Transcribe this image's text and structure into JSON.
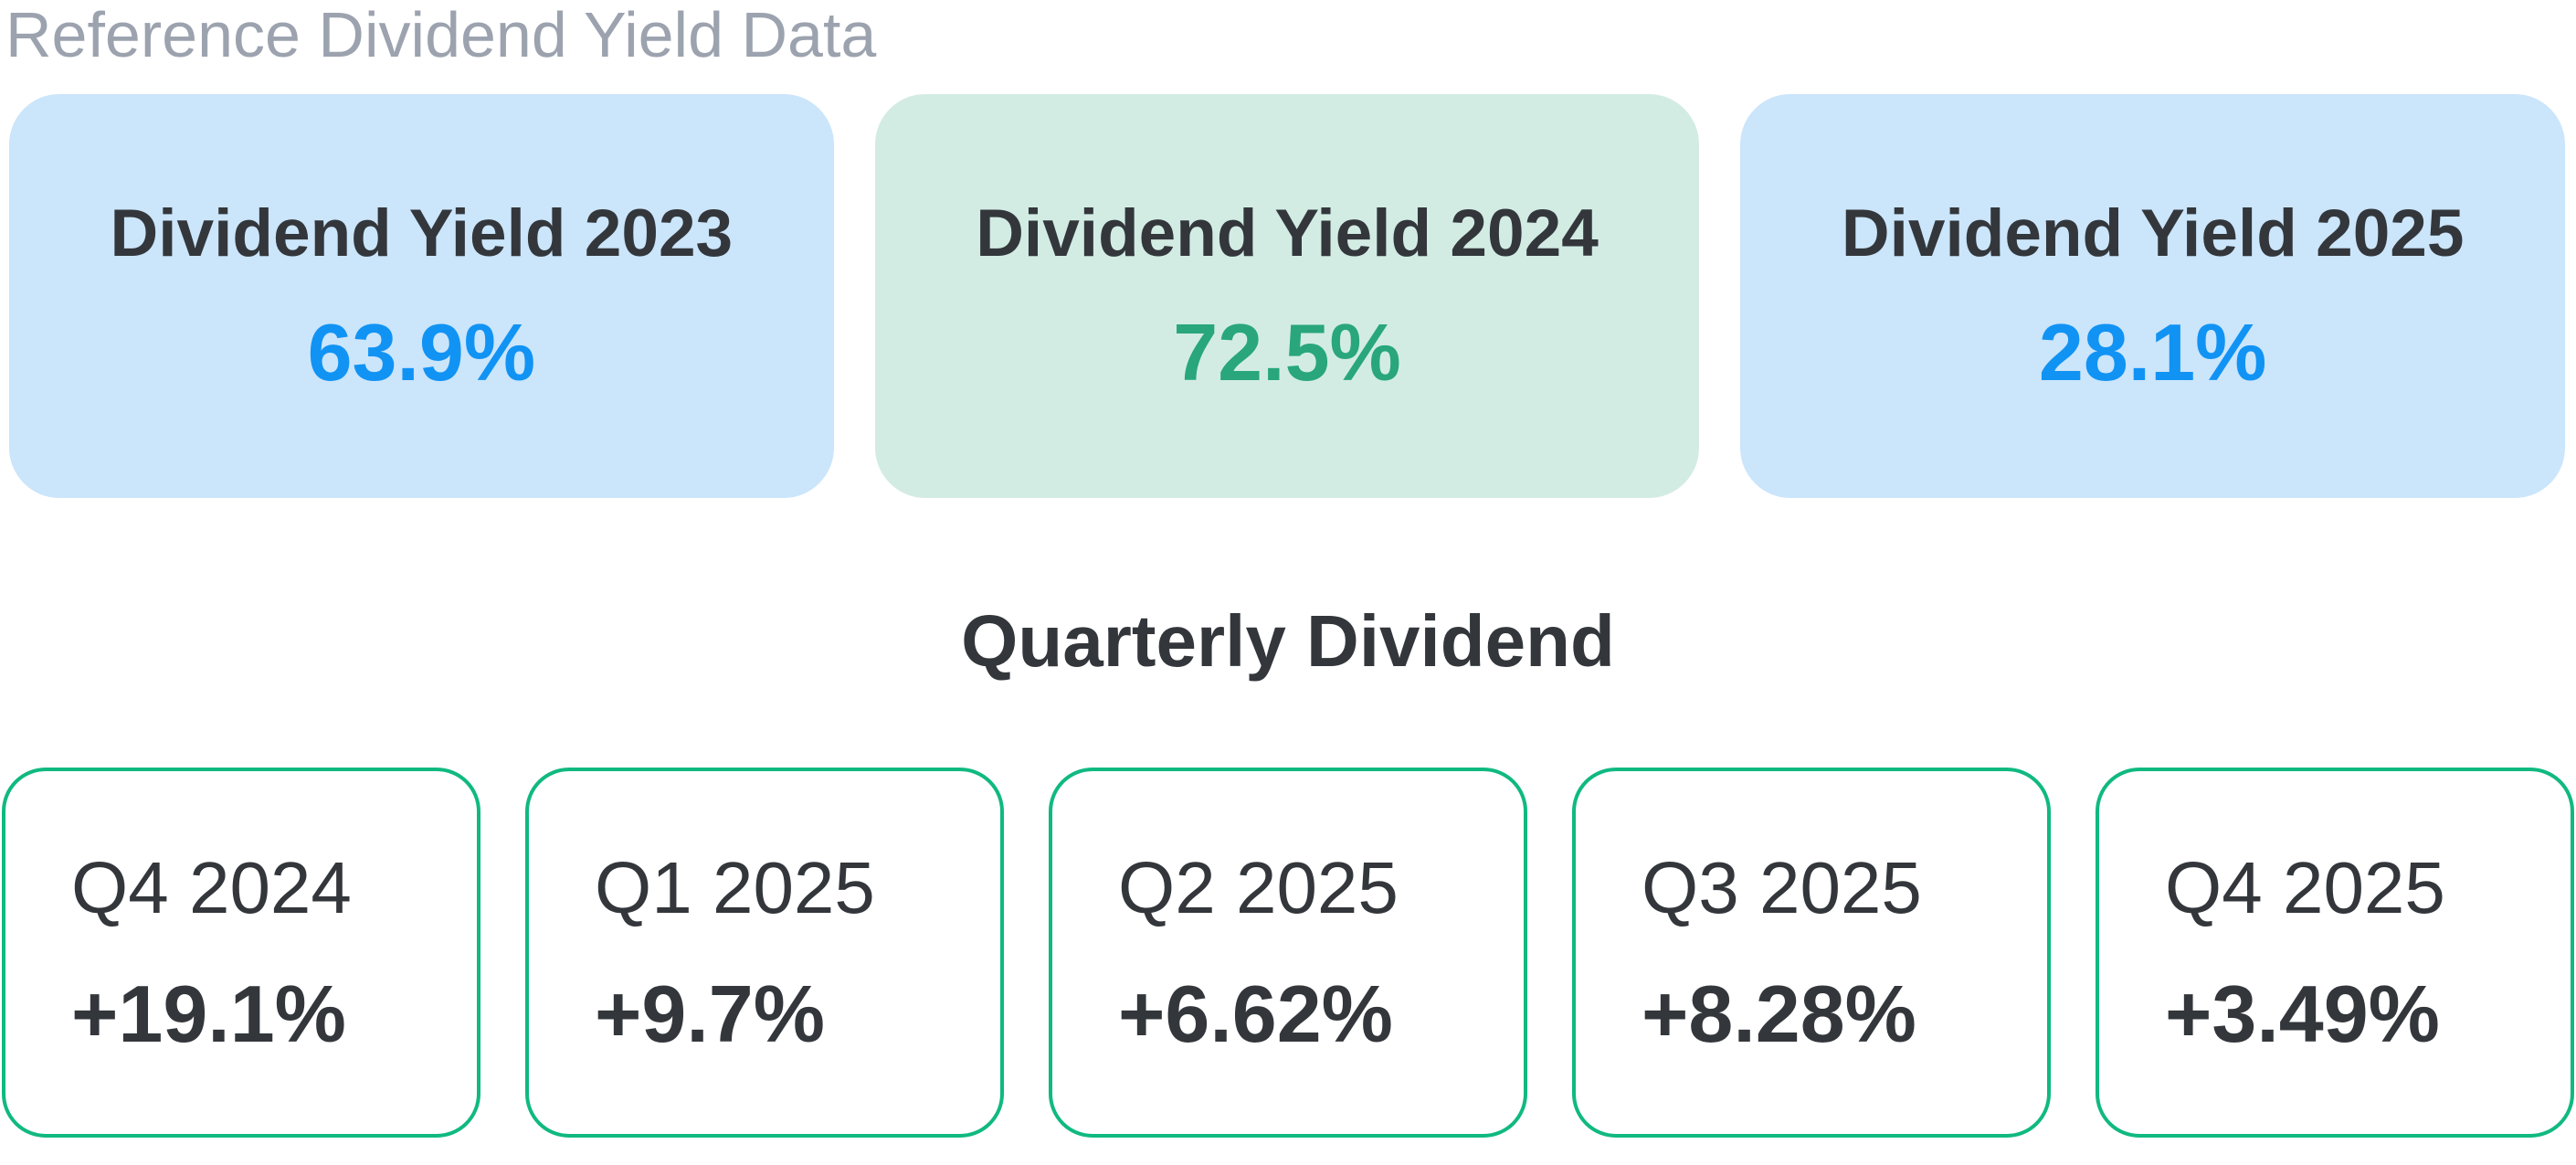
{
  "header": {
    "title": "Reference Dividend Yield Data"
  },
  "section": {
    "title": "Quarterly Dividend"
  },
  "yield_cards": [
    {
      "label": "Dividend Yield 2023",
      "value": "63.9%",
      "theme": "blue"
    },
    {
      "label": "Dividend Yield 2024",
      "value": "72.5%",
      "theme": "green"
    },
    {
      "label": "Dividend Yield 2025",
      "value": "28.1%",
      "theme": "blue"
    }
  ],
  "quarter_cards": [
    {
      "label": "Q4 2024",
      "value": "+19.1%"
    },
    {
      "label": "Q1 2025",
      "value": "+9.7%"
    },
    {
      "label": "Q2 2025",
      "value": "+6.62%"
    },
    {
      "label": "Q3 2025",
      "value": "+8.28%"
    },
    {
      "label": "Q4 2025",
      "value": "+3.49%"
    }
  ],
  "colors": {
    "page_bg": "#FFFFFF",
    "header_text": "#9CA3AF",
    "dark_text": "#33373B",
    "blue_value": "#1193F4",
    "green_value": "#29A67C",
    "blue_card_bg": "#CBE5FB",
    "green_card_bg": "#D2ECE4",
    "quarter_border": "#10B981"
  }
}
